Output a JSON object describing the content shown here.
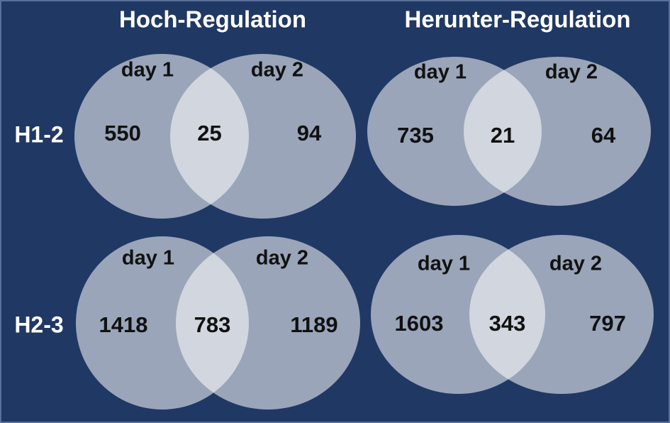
{
  "columns": [
    "Hoch-Regulation",
    "Herunter-Regulation"
  ],
  "rows": [
    "H1-2",
    "H2-3"
  ],
  "venns": [
    {
      "sets": [
        "day 1",
        "day 2"
      ],
      "counts": [
        550,
        25,
        94
      ]
    },
    {
      "sets": [
        "day 1",
        "day 2"
      ],
      "counts": [
        735,
        21,
        64
      ]
    },
    {
      "sets": [
        "day 1",
        "day 2"
      ],
      "counts": [
        1418,
        783,
        1189
      ]
    },
    {
      "sets": [
        "day 1",
        "day 2"
      ],
      "counts": [
        1603,
        343,
        797
      ]
    }
  ]
}
